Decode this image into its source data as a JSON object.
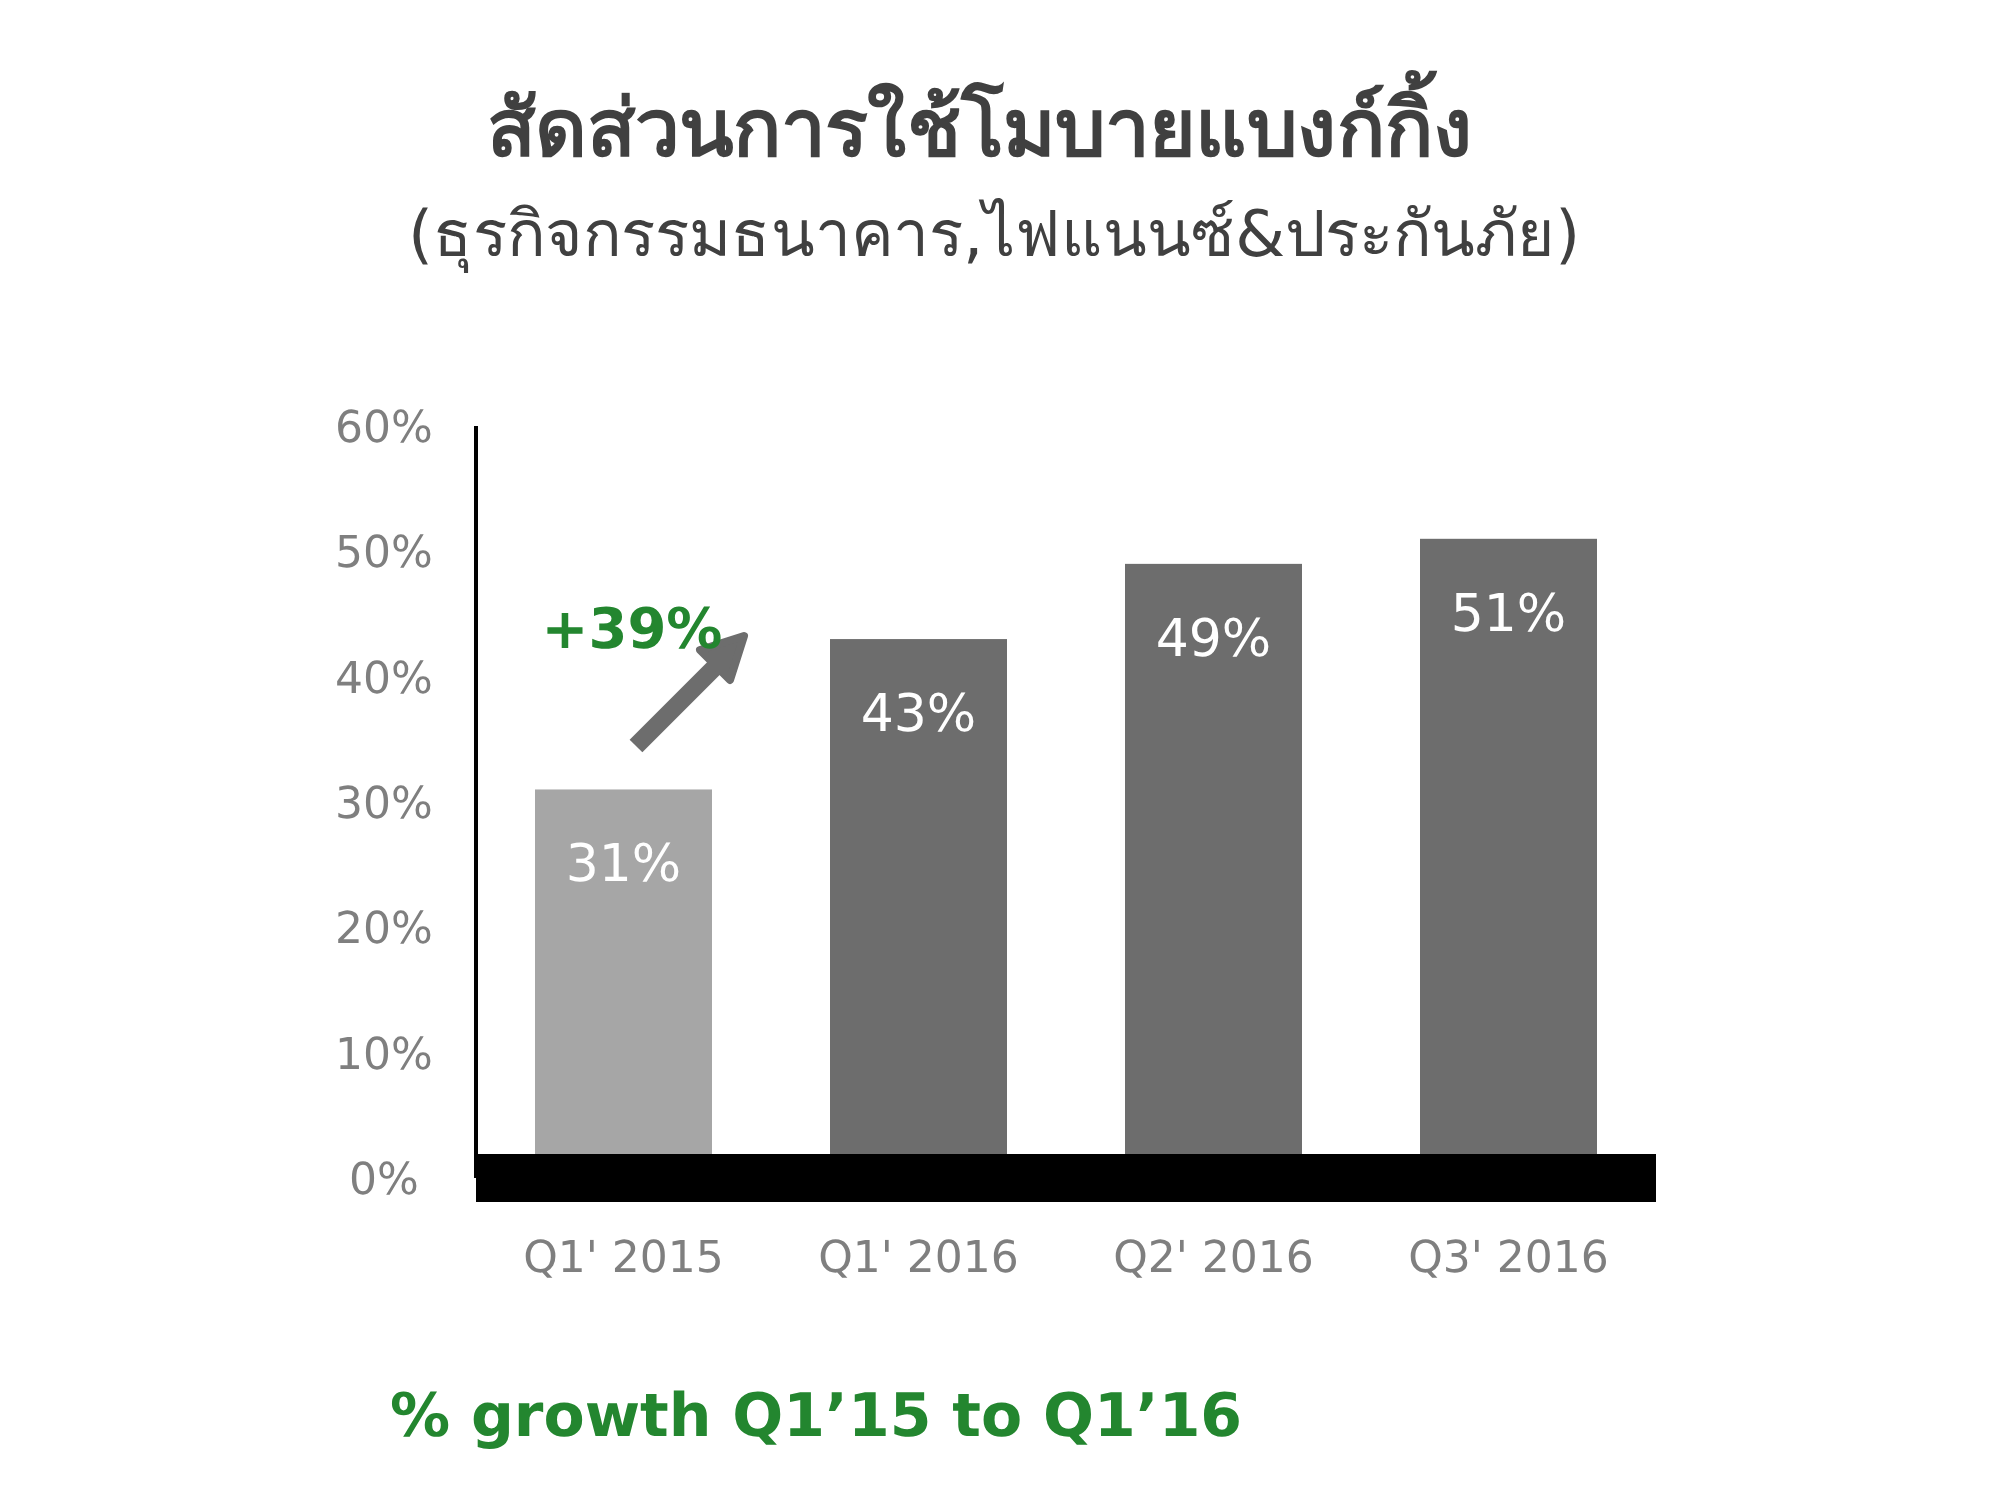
{
  "chart_data": {
    "type": "bar",
    "title": "สัดส่วนการใช้โมบายแบงก์กิ้ง",
    "subtitle": "(ธุรกิจกรรมธนาคาร,ไฟแนนซ์&ประกันภัย)",
    "categories": [
      "Q1' 2015",
      "Q1' 2016",
      "Q2' 2016",
      "Q3' 2016"
    ],
    "values": [
      31,
      43,
      49,
      51
    ],
    "colors": [
      "#a6a6a6",
      "#6d6d6d",
      "#6d6d6d",
      "#6d6d6d"
    ],
    "value_labels": [
      "31%",
      "43%",
      "49%",
      "51%"
    ],
    "ylim": [
      0,
      60
    ],
    "yticks": [
      {
        "value": 0,
        "label": "0%"
      },
      {
        "value": 10,
        "label": "10%"
      },
      {
        "value": 20,
        "label": "20%"
      },
      {
        "value": 30,
        "label": "30%"
      },
      {
        "value": 40,
        "label": "40%"
      },
      {
        "value": 50,
        "label": "50%"
      },
      {
        "value": 60,
        "label": "60%"
      }
    ],
    "annotations": [
      "+39%",
      "% growth Q1’15 to Q1’16"
    ],
    "grid": false
  }
}
